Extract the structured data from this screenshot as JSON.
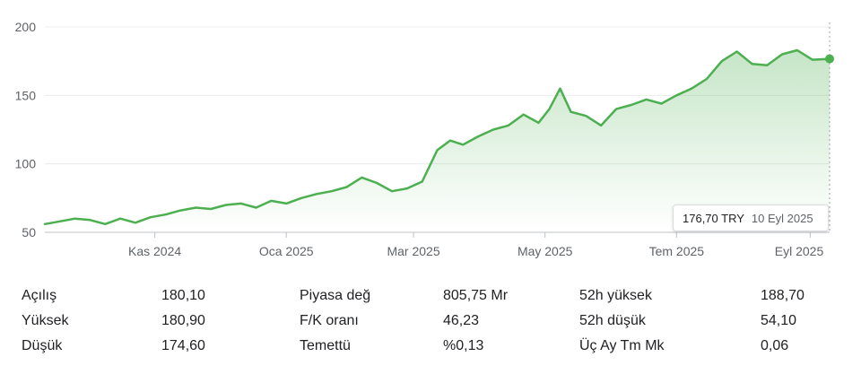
{
  "chart_data": {
    "type": "area",
    "series": [
      {
        "x": [
          "2024-09-11",
          "2024-09-18",
          "2024-09-25",
          "2024-10-02",
          "2024-10-09",
          "2024-10-16",
          "2024-10-23",
          "2024-10-30",
          "2024-11-06",
          "2024-11-13",
          "2024-11-20",
          "2024-11-27",
          "2024-12-04",
          "2024-12-11",
          "2024-12-18",
          "2024-12-25",
          "2025-01-01",
          "2025-01-08",
          "2025-01-15",
          "2025-01-22",
          "2025-01-29",
          "2025-02-05",
          "2025-02-12",
          "2025-02-19",
          "2025-02-26",
          "2025-03-05",
          "2025-03-12",
          "2025-03-18",
          "2025-03-24",
          "2025-03-31",
          "2025-04-07",
          "2025-04-14",
          "2025-04-21",
          "2025-04-28",
          "2025-05-03",
          "2025-05-08",
          "2025-05-13",
          "2025-05-20",
          "2025-05-27",
          "2025-06-03",
          "2025-06-10",
          "2025-06-17",
          "2025-06-24",
          "2025-07-01",
          "2025-07-08",
          "2025-07-15",
          "2025-07-22",
          "2025-07-29",
          "2025-08-05",
          "2025-08-12",
          "2025-08-19",
          "2025-08-26",
          "2025-09-02",
          "2025-09-10"
        ],
        "y": [
          56,
          58,
          60,
          59,
          56,
          60,
          57,
          61,
          63,
          66,
          68,
          67,
          70,
          71,
          68,
          73,
          71,
          75,
          78,
          80,
          83,
          90,
          86,
          80,
          82,
          87,
          110,
          117,
          114,
          120,
          125,
          128,
          136,
          130,
          140,
          155,
          138,
          135,
          128,
          140,
          143,
          147,
          144,
          150,
          155,
          162,
          175,
          182,
          173,
          172,
          180,
          183,
          176,
          176.7
        ]
      }
    ],
    "ylim": [
      50,
      200
    ],
    "yticks": [
      "50",
      "100",
      "150",
      "200"
    ],
    "xticks": [
      {
        "label": "Kas 2024",
        "date": "2024-11-01"
      },
      {
        "label": "Oca 2025",
        "date": "2025-01-01"
      },
      {
        "label": "Mar 2025",
        "date": "2025-03-01"
      },
      {
        "label": "May 2025",
        "date": "2025-05-01"
      },
      {
        "label": "Tem 2025",
        "date": "2025-07-01"
      },
      {
        "label": "Eyl 2025",
        "date": "2025-09-01"
      }
    ],
    "xlim": [
      "2024-09-11",
      "2025-09-10"
    ],
    "line_color": "#4caf50",
    "grid": true
  },
  "tooltip": {
    "price": "176,70 TRY",
    "date": "10 Eyl 2025"
  },
  "stats": {
    "col1": [
      {
        "label": "Açılış",
        "value": "180,10"
      },
      {
        "label": "Yüksek",
        "value": "180,90"
      },
      {
        "label": "Düşük",
        "value": "174,60"
      }
    ],
    "col2": [
      {
        "label": "Piyasa değ",
        "value": "805,75 Mr"
      },
      {
        "label": "F/K oranı",
        "value": "46,23"
      },
      {
        "label": "Temettü",
        "value": "%0,13"
      }
    ],
    "col3": [
      {
        "label": "52h yüksek",
        "value": "188,70"
      },
      {
        "label": "52h düşük",
        "value": "54,10"
      },
      {
        "label": "Üç Ay Tm Mk",
        "value": "0,06"
      }
    ]
  }
}
